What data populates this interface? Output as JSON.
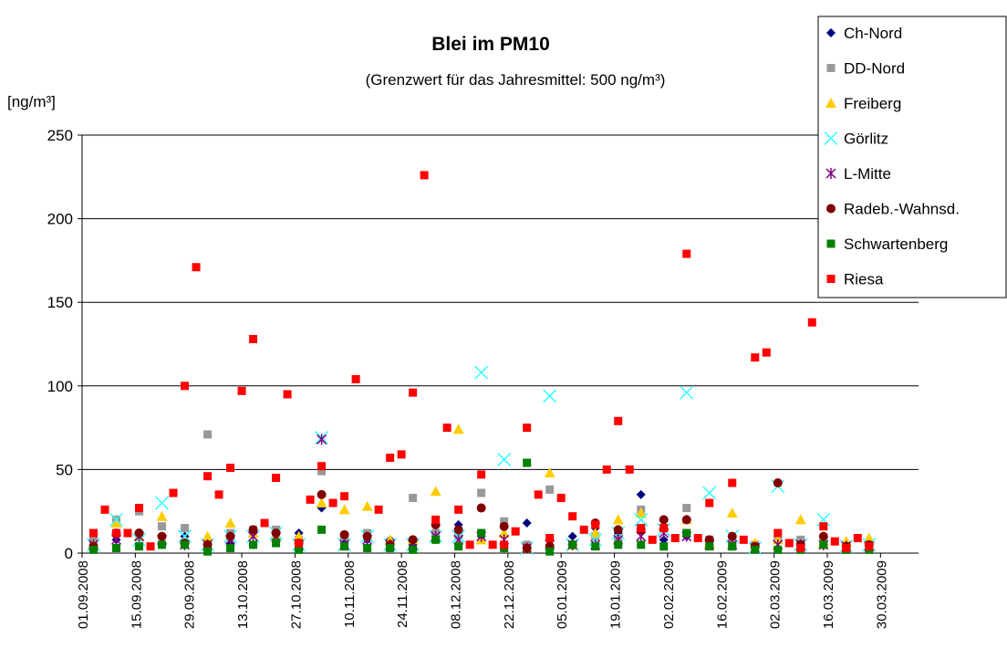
{
  "chart_data": {
    "type": "scatter",
    "title": "Blei im PM10",
    "subtitle": "(Grenzwert für das Jahresmittel: 500 ng/m³)",
    "y_label": "[ng/m³]",
    "xlim": [
      "01.09.2008",
      "09.04.2009"
    ],
    "xticks": [
      "01.09.2008",
      "15.09.2008",
      "29.09.2008",
      "13.10.2008",
      "27.10.2008",
      "10.11.2008",
      "24.11.2008",
      "08.12.2008",
      "22.12.2008",
      "05.01.2009",
      "19.01.2009",
      "02.02.2009",
      "16.02.2009",
      "02.03.2009",
      "16.03.2009",
      "30.03.2009"
    ],
    "ylim": [
      0,
      250
    ],
    "yticks": [
      0,
      50,
      100,
      150,
      200,
      250
    ],
    "grid": true,
    "legend": "top-right",
    "x": [
      "04.09.2008",
      "07.09.2008",
      "10.09.2008",
      "13.09.2008",
      "16.09.2008",
      "19.09.2008",
      "22.09.2008",
      "25.09.2008",
      "28.09.2008",
      "01.10.2008",
      "04.10.2008",
      "07.10.2008",
      "10.10.2008",
      "13.10.2008",
      "16.10.2008",
      "19.10.2008",
      "22.10.2008",
      "25.10.2008",
      "28.10.2008",
      "31.10.2008",
      "03.11.2008",
      "06.11.2008",
      "09.11.2008",
      "12.11.2008",
      "15.11.2008",
      "18.11.2008",
      "21.11.2008",
      "24.11.2008",
      "27.11.2008",
      "30.11.2008",
      "03.12.2008",
      "06.12.2008",
      "09.12.2008",
      "12.12.2008",
      "15.12.2008",
      "18.12.2008",
      "21.12.2008",
      "24.12.2008",
      "27.12.2008",
      "30.12.2008",
      "02.01.2009",
      "05.01.2009",
      "08.01.2009",
      "11.01.2009",
      "14.01.2009",
      "17.01.2009",
      "20.01.2009",
      "23.01.2009",
      "26.01.2009",
      "29.01.2009",
      "01.02.2009",
      "04.02.2009",
      "07.02.2009",
      "10.02.2009",
      "13.02.2009",
      "16.02.2009",
      "19.02.2009",
      "22.02.2009",
      "25.02.2009",
      "28.02.2009",
      "03.03.2009",
      "06.03.2009",
      "09.03.2009",
      "12.03.2009",
      "15.03.2009",
      "18.03.2009",
      "21.03.2009",
      "24.03.2009",
      "27.03.2009",
      "30.03.2009"
    ],
    "series": [
      {
        "name": "Ch-Nord",
        "color": "#000080",
        "marker": "diamond",
        "values": [
          5,
          null,
          8,
          null,
          10,
          null,
          5,
          null,
          10,
          null,
          5,
          null,
          6,
          null,
          5,
          null,
          8,
          null,
          12,
          null,
          27,
          null,
          6,
          null,
          8,
          null,
          8,
          null,
          5,
          null,
          10,
          null,
          17,
          null,
          10,
          null,
          3,
          null,
          18,
          null,
          5,
          null,
          10,
          null,
          15,
          null,
          12,
          null,
          35,
          null,
          8,
          null,
          10,
          null,
          5,
          null,
          4,
          null,
          4,
          null,
          8,
          null,
          5,
          null,
          5,
          null,
          3,
          null,
          4,
          null
        ]
      },
      {
        "name": "DD-Nord",
        "color": "#999999",
        "marker": "square",
        "values": [
          8,
          null,
          20,
          null,
          25,
          null,
          16,
          null,
          15,
          null,
          71,
          null,
          12,
          null,
          14,
          null,
          14,
          null,
          8,
          null,
          49,
          null,
          10,
          null,
          12,
          null,
          5,
          null,
          33,
          null,
          12,
          null,
          10,
          null,
          36,
          null,
          19,
          null,
          5,
          null,
          38,
          null,
          5,
          null,
          10,
          null,
          8,
          null,
          26,
          null,
          15,
          null,
          27,
          null,
          8,
          null,
          5,
          null,
          5,
          null,
          8,
          null,
          8,
          null,
          5,
          null,
          5,
          null
        ]
      },
      {
        "name": "Freiberg",
        "color": "#FFCC00",
        "marker": "triangle",
        "values": [
          5,
          null,
          18,
          null,
          10,
          null,
          22,
          null,
          8,
          null,
          10,
          null,
          18,
          null,
          12,
          null,
          10,
          null,
          10,
          null,
          30,
          null,
          26,
          null,
          28,
          null,
          8,
          null,
          8,
          null,
          37,
          null,
          74,
          null,
          8,
          null,
          12,
          null,
          3,
          null,
          48,
          null,
          5,
          null,
          12,
          null,
          20,
          null,
          24,
          null,
          16,
          null,
          20,
          null,
          6,
          null,
          24,
          null,
          6,
          null,
          8,
          null,
          20,
          null,
          6,
          null,
          7,
          null,
          9,
          null
        ]
      },
      {
        "name": "Görlitz",
        "color": "#33FFFF",
        "marker": "x",
        "values": [
          5,
          null,
          20,
          null,
          8,
          null,
          30,
          null,
          10,
          null,
          5,
          null,
          10,
          null,
          10,
          null,
          12,
          null,
          5,
          null,
          69,
          null,
          5,
          null,
          10,
          null,
          5,
          null,
          5,
          null,
          10,
          null,
          10,
          null,
          108,
          null,
          56,
          null,
          3,
          null,
          94,
          null,
          5,
          null,
          8,
          null,
          12,
          null,
          20,
          null,
          14,
          null,
          96,
          null,
          36,
          null,
          10,
          null,
          3,
          null,
          40,
          null,
          5,
          null,
          20,
          null,
          4,
          null,
          5,
          null
        ]
      },
      {
        "name": "L-Mitte",
        "color": "#800080",
        "marker": "star",
        "values": [
          5,
          null,
          8,
          null,
          10,
          null,
          8,
          null,
          5,
          null,
          5,
          null,
          8,
          null,
          10,
          null,
          10,
          null,
          5,
          null,
          68,
          null,
          5,
          null,
          8,
          null,
          5,
          null,
          5,
          null,
          10,
          null,
          8,
          null,
          10,
          null,
          8,
          null,
          3,
          null,
          5,
          null,
          5,
          null,
          5,
          null,
          8,
          null,
          10,
          null,
          12,
          null,
          10,
          null,
          5,
          null,
          5,
          null,
          3,
          null,
          5,
          null,
          5,
          null,
          5,
          null,
          4,
          null,
          4,
          null
        ]
      },
      {
        "name": "Radeb.-Wahnsd.",
        "color": "#800000",
        "marker": "circle",
        "values": [
          4,
          null,
          12,
          null,
          12,
          null,
          10,
          null,
          6,
          null,
          5,
          null,
          10,
          null,
          14,
          null,
          12,
          null,
          6,
          null,
          35,
          null,
          11,
          null,
          10,
          null,
          5,
          null,
          8,
          null,
          17,
          null,
          14,
          null,
          27,
          null,
          16,
          null,
          3,
          null,
          4,
          null,
          5,
          null,
          18,
          null,
          14,
          null,
          14,
          null,
          20,
          null,
          20,
          null,
          8,
          null,
          10,
          null,
          4,
          null,
          42,
          null,
          5,
          null,
          10,
          null,
          4,
          null,
          5,
          null
        ]
      },
      {
        "name": "Schwartenberg",
        "color": "#008000",
        "marker": "square",
        "values": [
          2,
          null,
          3,
          null,
          4,
          null,
          5,
          null,
          5,
          null,
          1,
          null,
          3,
          null,
          5,
          null,
          6,
          null,
          2,
          null,
          14,
          null,
          4,
          null,
          3,
          null,
          3,
          null,
          2,
          null,
          8,
          null,
          4,
          null,
          12,
          null,
          3,
          null,
          54,
          null,
          1,
          null,
          5,
          null,
          4,
          null,
          5,
          null,
          5,
          null,
          4,
          null,
          12,
          null,
          4,
          null,
          4,
          null,
          2,
          null,
          2,
          null,
          2,
          null,
          5,
          null,
          2,
          null,
          2,
          null
        ]
      },
      {
        "name": "Riesa",
        "color": "#FF0000",
        "marker": "square",
        "values": [
          12,
          26,
          12,
          12,
          27,
          4,
          null,
          36,
          100,
          171,
          46,
          35,
          51,
          97,
          128,
          18,
          45,
          95,
          6,
          32,
          52,
          30,
          34,
          104,
          null,
          26,
          57,
          59,
          96,
          226,
          20,
          75,
          26,
          5,
          47,
          5,
          5,
          13,
          75,
          35,
          9,
          33,
          22,
          14,
          17,
          50,
          79,
          50,
          15,
          8,
          15,
          9,
          179,
          9,
          30,
          null,
          42,
          8,
          117,
          120,
          12,
          6,
          3,
          138,
          16,
          7,
          3,
          9,
          4,
          null
        ]
      }
    ]
  }
}
